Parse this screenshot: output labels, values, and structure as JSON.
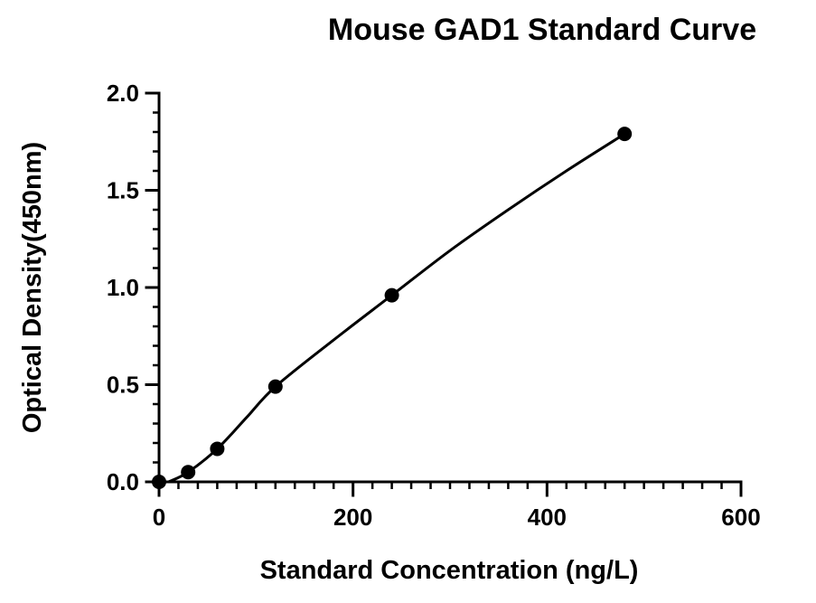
{
  "chart_data": {
    "type": "scatter",
    "title": "Mouse GAD1 Standard Curve",
    "xlabel": "Standard Concentration (ng/L)",
    "ylabel": "Optical Density(450nm)",
    "xlim": [
      0,
      600
    ],
    "ylim": [
      0,
      2.0
    ],
    "x_ticks": [
      0,
      200,
      400,
      600
    ],
    "y_ticks": [
      0.0,
      0.5,
      1.0,
      1.5,
      2.0
    ],
    "x_tick_labels": [
      "0",
      "200",
      "400",
      "600"
    ],
    "y_tick_labels": [
      "0.0",
      "0.5",
      "1.0",
      "1.5",
      "2.0"
    ],
    "points": {
      "x": [
        0,
        30,
        60,
        120,
        240,
        480
      ],
      "y": [
        0.0,
        0.05,
        0.17,
        0.49,
        0.96,
        1.79
      ]
    },
    "fit_curve": {
      "x": [
        10,
        30,
        60,
        90,
        120,
        180,
        240,
        300,
        360,
        420,
        480
      ],
      "y": [
        0.0,
        0.05,
        0.17,
        0.33,
        0.49,
        0.73,
        0.96,
        1.19,
        1.4,
        1.6,
        1.79
      ]
    },
    "grid": false,
    "legend": "none",
    "marker_color": "#000000",
    "line_color": "#000000"
  }
}
